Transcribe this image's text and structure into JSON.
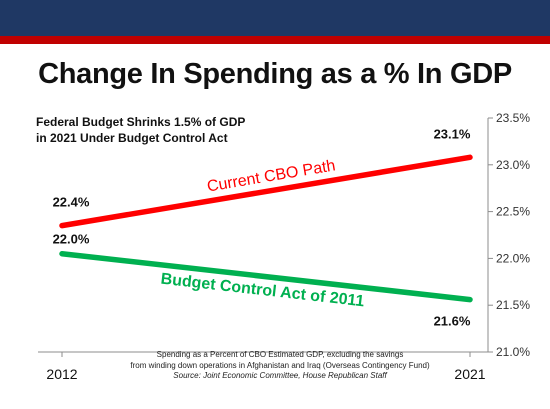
{
  "header": {
    "band_color": "#1f3864",
    "stripe_color": "#c00000"
  },
  "title": "Change In Spending as a % In GDP",
  "subtitle_lines": [
    "Federal Budget Shrinks 1.5% of GDP",
    "in 2021 Under Budget Control Act"
  ],
  "footnote": {
    "line1": "Spending as a Percent of CBO Estimated GDP, excluding the savings",
    "line2": "from winding down operations in Afghanistan and Iraq (Overseas Contingency Fund)",
    "source": "Source: Joint Economic Committee, House Republican Staff"
  },
  "chart_data": {
    "type": "line",
    "x": [
      2012,
      2021
    ],
    "x_tick_labels": [
      "2012",
      "2021"
    ],
    "ylim": [
      21.0,
      23.5
    ],
    "y_ticks": [
      21.0,
      21.5,
      22.0,
      22.5,
      23.0,
      23.5
    ],
    "y_tick_labels": [
      "21.0%",
      "21.5%",
      "22.0%",
      "22.5%",
      "23.0%",
      "23.5%"
    ],
    "y_axis_position": "right",
    "grid": false,
    "series": [
      {
        "name": "Current CBO Path",
        "color": "#ff0000",
        "values": [
          22.35,
          23.08
        ],
        "labels": [
          "22.4%",
          "23.1%"
        ]
      },
      {
        "name": "Budget Control Act of 2011",
        "color": "#00b050",
        "values": [
          22.05,
          21.56
        ],
        "labels": [
          "22.0%",
          "21.6%"
        ]
      }
    ]
  }
}
